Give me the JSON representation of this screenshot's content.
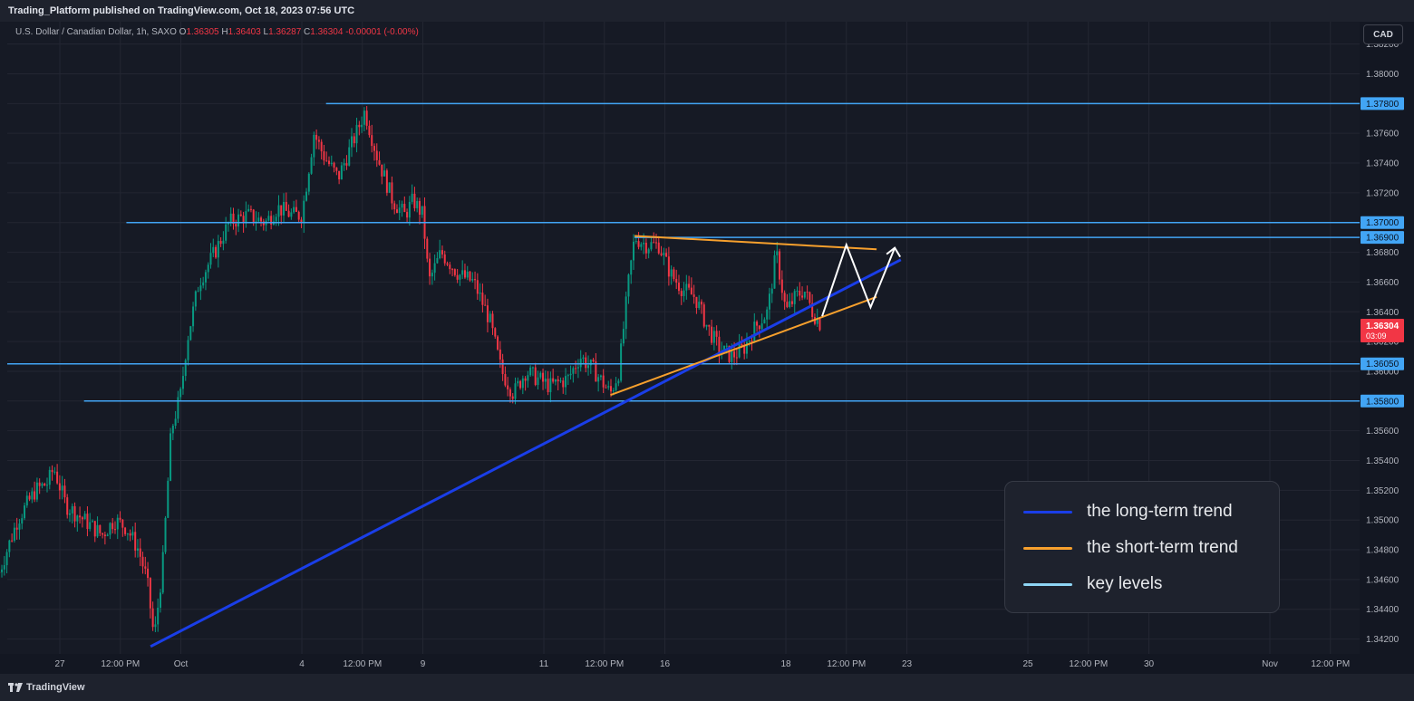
{
  "header": {
    "published": "Trading_Platform published on TradingView.com, Oct 18, 2023 07:56 UTC"
  },
  "symbol": {
    "name": "U.S. Dollar / Canadian Dollar, 1h, SAXO",
    "o_label": "O",
    "o": "1.36305",
    "h_label": "H",
    "h": "1.36403",
    "l_label": "L",
    "l": "1.36287",
    "c_label": "C",
    "c": "1.36304",
    "change": "-0.00001 (-0.00%)"
  },
  "currency_button": "CAD",
  "footer": {
    "logo_text": "TradingView"
  },
  "colors": {
    "background": "#161a25",
    "up_candle": "#089981",
    "down_candle": "#f23645",
    "key_level": "#42a5f5",
    "long_trend": "#1a3ee8",
    "short_trend": "#f7a02d",
    "projection": "#ffffff"
  },
  "legend": {
    "items": [
      {
        "label": "the long-term trend",
        "color": "#1a3ee8"
      },
      {
        "label": "the short-term trend",
        "color": "#f7a02d"
      },
      {
        "label": "key levels",
        "color": "#8fd6f5"
      }
    ]
  },
  "chart_data": {
    "type": "candlestick",
    "symbol": "USDCAD",
    "timeframe": "1h",
    "ylim": [
      1.341,
      1.3835
    ],
    "y_ticks": [
      "1.34200",
      "1.34400",
      "1.34600",
      "1.34800",
      "1.35000",
      "1.35200",
      "1.35400",
      "1.35600",
      "1.35800",
      "1.36000",
      "1.36200",
      "1.36400",
      "1.36600",
      "1.36800",
      "1.37000",
      "1.37200",
      "1.37400",
      "1.37600",
      "1.37800",
      "1.38000",
      "1.38200"
    ],
    "x_ticks": [
      {
        "label": "27",
        "day": 0
      },
      {
        "label": "12:00 PM",
        "day": 0.5
      },
      {
        "label": "Oct",
        "day": 1
      },
      {
        "label": "4",
        "day": 2
      },
      {
        "label": "12:00 PM",
        "day": 2.5
      },
      {
        "label": "9",
        "day": 3
      },
      {
        "label": "11",
        "day": 4
      },
      {
        "label": "12:00 PM",
        "day": 4.5
      },
      {
        "label": "16",
        "day": 5
      },
      {
        "label": "18",
        "day": 6
      },
      {
        "label": "12:00 PM",
        "day": 6.5
      },
      {
        "label": "23",
        "day": 7
      },
      {
        "label": "25",
        "day": 8
      },
      {
        "label": "12:00 PM",
        "day": 8.5
      },
      {
        "label": "30",
        "day": 9
      },
      {
        "label": "Nov",
        "day": 10
      },
      {
        "label": "12:00 PM",
        "day": 10.5
      }
    ],
    "price_path": [
      [
        -0.5,
        1.3465
      ],
      [
        -0.35,
        1.35
      ],
      [
        -0.2,
        1.352
      ],
      [
        -0.1,
        1.3525
      ],
      [
        -0.05,
        1.3535
      ],
      [
        0.05,
        1.351
      ],
      [
        0.2,
        1.35
      ],
      [
        0.35,
        1.349
      ],
      [
        0.45,
        1.35
      ],
      [
        0.55,
        1.3495
      ],
      [
        0.65,
        1.348
      ],
      [
        0.72,
        1.346
      ],
      [
        0.78,
        1.342
      ],
      [
        0.85,
        1.347
      ],
      [
        0.92,
        1.356
      ],
      [
        1.0,
        1.3585
      ],
      [
        1.05,
        1.362
      ],
      [
        1.15,
        1.366
      ],
      [
        1.28,
        1.368
      ],
      [
        1.4,
        1.37
      ],
      [
        1.55,
        1.3705
      ],
      [
        1.7,
        1.37
      ],
      [
        1.8,
        1.371
      ],
      [
        1.92,
        1.3705
      ],
      [
        2.0,
        1.3705
      ],
      [
        2.1,
        1.376
      ],
      [
        2.18,
        1.3745
      ],
      [
        2.3,
        1.373
      ],
      [
        2.45,
        1.376
      ],
      [
        2.52,
        1.3775
      ],
      [
        2.62,
        1.3745
      ],
      [
        2.75,
        1.3715
      ],
      [
        2.85,
        1.3705
      ],
      [
        2.92,
        1.3715
      ],
      [
        3.0,
        1.3705
      ],
      [
        3.05,
        1.366
      ],
      [
        3.15,
        1.368
      ],
      [
        3.3,
        1.3665
      ],
      [
        3.42,
        1.366
      ],
      [
        3.55,
        1.3635
      ],
      [
        3.65,
        1.36
      ],
      [
        3.75,
        1.3585
      ],
      [
        3.85,
        1.36
      ],
      [
        3.95,
        1.3595
      ],
      [
        4.05,
        1.359
      ],
      [
        4.2,
        1.3595
      ],
      [
        4.3,
        1.361
      ],
      [
        4.42,
        1.36
      ],
      [
        4.55,
        1.3585
      ],
      [
        4.62,
        1.36
      ],
      [
        4.7,
        1.366
      ],
      [
        4.75,
        1.369
      ],
      [
        4.85,
        1.3685
      ],
      [
        4.95,
        1.3685
      ],
      [
        5.05,
        1.3665
      ],
      [
        5.15,
        1.3655
      ],
      [
        5.25,
        1.365
      ],
      [
        5.35,
        1.363
      ],
      [
        5.45,
        1.3615
      ],
      [
        5.55,
        1.361
      ],
      [
        5.65,
        1.3615
      ],
      [
        5.75,
        1.363
      ],
      [
        5.85,
        1.364
      ],
      [
        5.92,
        1.368
      ],
      [
        6.0,
        1.364
      ],
      [
        6.08,
        1.365
      ],
      [
        6.15,
        1.3655
      ],
      [
        6.22,
        1.364
      ],
      [
        6.3,
        1.363
      ]
    ],
    "key_levels": [
      1.378,
      1.37,
      1.369,
      1.3605,
      1.358
    ],
    "key_level_labels": [
      "1.37800",
      "1.37000",
      "1.36900",
      "1.36050",
      "1.35800"
    ],
    "long_trend": {
      "from": [
        0.75,
        1.3415
      ],
      "to": [
        6.95,
        1.3675
      ]
    },
    "short_trend_upper": {
      "from": [
        4.75,
        1.3691
      ],
      "to": [
        6.75,
        1.3682
      ]
    },
    "short_trend_lower": {
      "from": [
        4.55,
        1.3584
      ],
      "to": [
        6.75,
        1.365
      ]
    },
    "projection": [
      [
        6.3,
        1.3637
      ],
      [
        6.5,
        1.3685
      ],
      [
        6.7,
        1.3643
      ],
      [
        6.9,
        1.3683
      ]
    ],
    "current_price": {
      "value": 1.36304,
      "label": "1.36304",
      "countdown": "03:09"
    }
  }
}
